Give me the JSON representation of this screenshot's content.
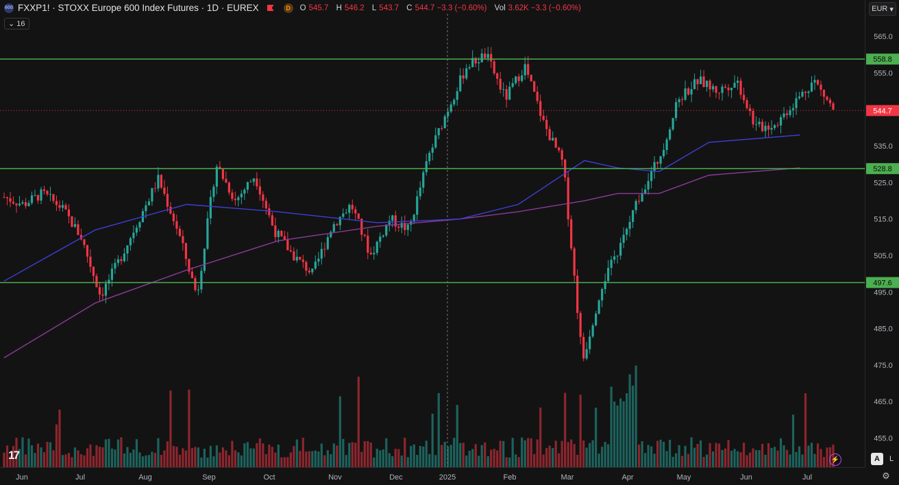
{
  "header": {
    "symbol_badge": "600",
    "title": "FXXP1! · STOXX Europe 600 Index Futures · 1D · EUREX",
    "data_badge": "D",
    "ohlc": [
      {
        "k": "O",
        "v": "545.7"
      },
      {
        "k": "H",
        "v": "546.2"
      },
      {
        "k": "L",
        "v": "543.7"
      },
      {
        "k": "C",
        "v": "544.7 −3.3 (−0.60%)"
      },
      {
        "k": "Vol",
        "v": "3.62K −3.3 (−0.60%)"
      }
    ],
    "indicator_count": "16",
    "currency": "EUR"
  },
  "colors": {
    "up": "#26a69a",
    "down": "#f23645",
    "level": "#4caf50",
    "ma1": "#3f3fd9",
    "ma2": "#8e3a9c",
    "bg": "#131313"
  },
  "chart_data": {
    "type": "candlestick",
    "ylim": [
      450,
      570
    ],
    "y_ticks": [
      "565.0",
      "555.0",
      "535.0",
      "525.0",
      "515.0",
      "505.0",
      "495.0",
      "485.0",
      "475.0",
      "465.0",
      "455.0"
    ],
    "x_ticks": [
      "Jun",
      "Jul",
      "Aug",
      "Sep",
      "Oct",
      "Nov",
      "Dec",
      "2025",
      "Feb",
      "Mar",
      "Apr",
      "May",
      "Jun",
      "Jul"
    ],
    "horizontal_levels": [
      558.8,
      528.8,
      497.6
    ],
    "last_price": 544.7,
    "price_path": [
      [
        "Jun",
        521
      ],
      [
        "Jun",
        519
      ],
      [
        "Jul",
        522
      ],
      [
        "Jul",
        518
      ],
      [
        "Aug",
        510
      ],
      [
        "Aug",
        494
      ],
      [
        "Aug",
        504
      ],
      [
        "Sep",
        515
      ],
      [
        "Sep",
        526
      ],
      [
        "Sep",
        512
      ],
      [
        "Sep",
        494
      ],
      [
        "Oct",
        530
      ],
      [
        "Oct",
        520
      ],
      [
        "Oct",
        527
      ],
      [
        "Nov",
        512
      ],
      [
        "Nov",
        505
      ],
      [
        "Nov",
        500
      ],
      [
        "Dec",
        513
      ],
      [
        "Dec",
        519
      ],
      [
        "Dec",
        505
      ],
      [
        "2025",
        515
      ],
      [
        "2025",
        512
      ],
      [
        "2025",
        532
      ],
      [
        "Feb",
        545
      ],
      [
        "Feb",
        557
      ],
      [
        "Mar",
        560
      ],
      [
        "Mar",
        548
      ],
      [
        "Mar",
        557
      ],
      [
        "Mar",
        541
      ],
      [
        "Apr",
        530
      ],
      [
        "Apr",
        476
      ],
      [
        "Apr",
        497
      ],
      [
        "Apr",
        508
      ],
      [
        "May",
        522
      ],
      [
        "May",
        532
      ],
      [
        "May",
        548
      ],
      [
        "Jun",
        553
      ],
      [
        "Jun",
        550
      ],
      [
        "Jun",
        553
      ],
      [
        "Jun",
        540
      ],
      [
        "Jul",
        541
      ],
      [
        "Jul",
        547
      ],
      [
        "Jul",
        553
      ],
      [
        "Jul",
        545
      ]
    ],
    "ma_1": [
      [
        0,
        498
      ],
      [
        0.11,
        512
      ],
      [
        0.22,
        519
      ],
      [
        0.33,
        517
      ],
      [
        0.45,
        514
      ],
      [
        0.55,
        515
      ],
      [
        0.62,
        519
      ],
      [
        0.7,
        531
      ],
      [
        0.74,
        529
      ],
      [
        0.79,
        528
      ],
      [
        0.85,
        536
      ],
      [
        0.96,
        538
      ]
    ],
    "ma_2": [
      [
        0,
        477
      ],
      [
        0.11,
        492
      ],
      [
        0.22,
        501
      ],
      [
        0.33,
        509
      ],
      [
        0.45,
        513
      ],
      [
        0.55,
        515
      ],
      [
        0.62,
        517
      ],
      [
        0.7,
        520
      ],
      [
        0.74,
        522
      ],
      [
        0.79,
        522
      ],
      [
        0.85,
        527
      ],
      [
        0.96,
        529
      ]
    ]
  }
}
